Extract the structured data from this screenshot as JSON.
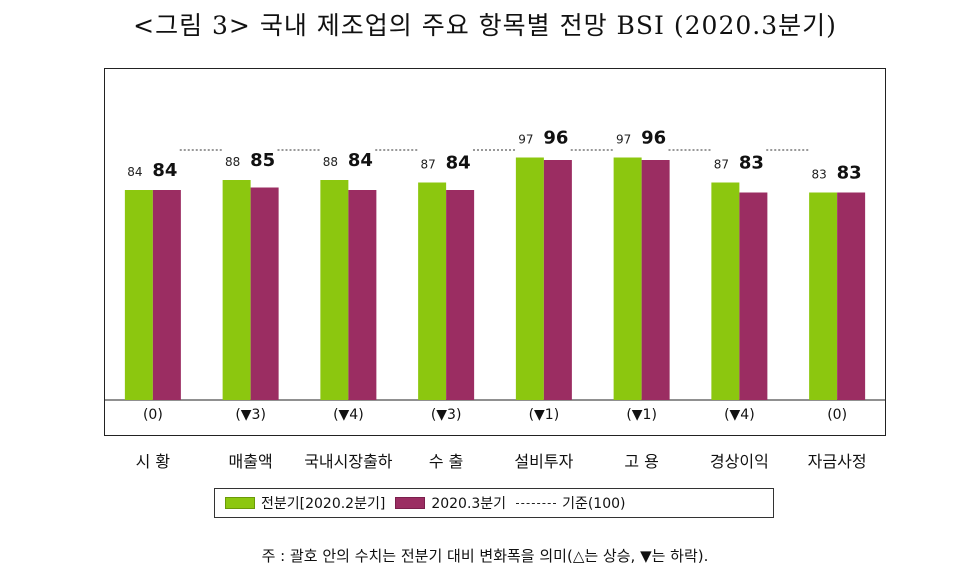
{
  "title": "<그림 3> 국내 제조업의 주요 항목별 전망 BSI (2020.3분기)",
  "chart_data": {
    "type": "bar",
    "categories": [
      "시 황",
      "매출액",
      "국내시장출하",
      "수 출",
      "설비투자",
      "고 용",
      "경상이익",
      "자금사정"
    ],
    "series": [
      {
        "name": "전분기[2020.2분기]",
        "values": [
          84,
          88,
          88,
          87,
          97,
          97,
          87,
          83
        ],
        "color": "#8cc70f"
      },
      {
        "name": "2020.3분기",
        "values": [
          84,
          85,
          84,
          84,
          96,
          96,
          83,
          83
        ],
        "color": "#9b2d62"
      }
    ],
    "reference": {
      "name": "기준(100)",
      "value": 100
    },
    "changes": [
      "(0)",
      "(▼3)",
      "(▼4)",
      "(▼3)",
      "(▼1)",
      "(▼1)",
      "(▼4)",
      "(0)"
    ],
    "ylim": [
      0,
      115
    ],
    "grid": false,
    "legend_position": "bottom"
  },
  "legend": {
    "prev_label": "전분기[2020.2분기]",
    "curr_label": "2020.3분기",
    "ref_label": "기준(100)"
  },
  "note": "주 : 괄호 안의 수치는 전분기 대비 변화폭을 의미(△는 상승, ▼는 하락)."
}
